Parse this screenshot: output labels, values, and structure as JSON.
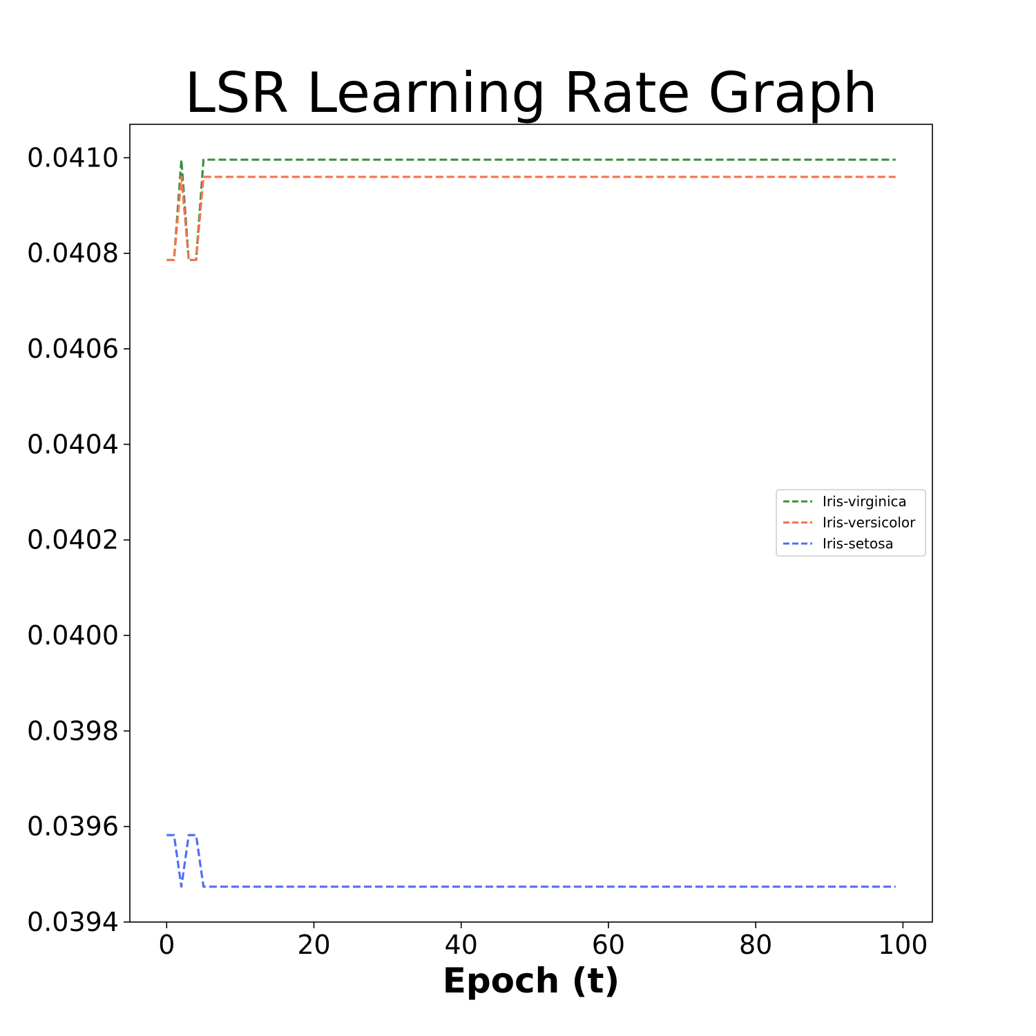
{
  "chart_data": {
    "type": "line",
    "title": "LSR Learning Rate Graph",
    "xlabel": "Epoch (t)",
    "ylabel": "",
    "xlim": [
      -5,
      104
    ],
    "ylim": [
      0.0394,
      0.04107
    ],
    "xticks": [
      0,
      20,
      40,
      60,
      80,
      100
    ],
    "xtick_labels": [
      "0",
      "20",
      "40",
      "60",
      "80",
      "100"
    ],
    "yticks": [
      0.0394,
      0.0396,
      0.0398,
      0.04,
      0.0402,
      0.0404,
      0.0406,
      0.0408,
      0.041
    ],
    "ytick_labels": [
      "0.0394",
      "0.0396",
      "0.0398",
      "0.0400",
      "0.0402",
      "0.0404",
      "0.0406",
      "0.0408",
      "0.0410"
    ],
    "grid": false,
    "legend_position": "center-right",
    "line_style": "dashed",
    "series": [
      {
        "name": "Iris-virginica",
        "color": "#3d8f3d",
        "points": [
          [
            0,
            0.040786
          ],
          [
            1,
            0.040786
          ],
          [
            2,
            0.040996
          ],
          [
            3,
            0.040786
          ],
          [
            4,
            0.040786
          ],
          [
            5,
            0.040996
          ],
          [
            99,
            0.040996
          ]
        ]
      },
      {
        "name": "Iris-versicolor",
        "color": "#f5734f",
        "points": [
          [
            0,
            0.040786
          ],
          [
            1,
            0.040786
          ],
          [
            2,
            0.04096
          ],
          [
            3,
            0.040786
          ],
          [
            4,
            0.040786
          ],
          [
            5,
            0.04096
          ],
          [
            99,
            0.04096
          ]
        ]
      },
      {
        "name": "Iris-setosa",
        "color": "#4f6ef5",
        "points": [
          [
            0,
            0.039582
          ],
          [
            1,
            0.039582
          ],
          [
            2,
            0.039474
          ],
          [
            3,
            0.039582
          ],
          [
            4,
            0.039582
          ],
          [
            5,
            0.039474
          ],
          [
            99,
            0.039474
          ]
        ]
      }
    ]
  }
}
